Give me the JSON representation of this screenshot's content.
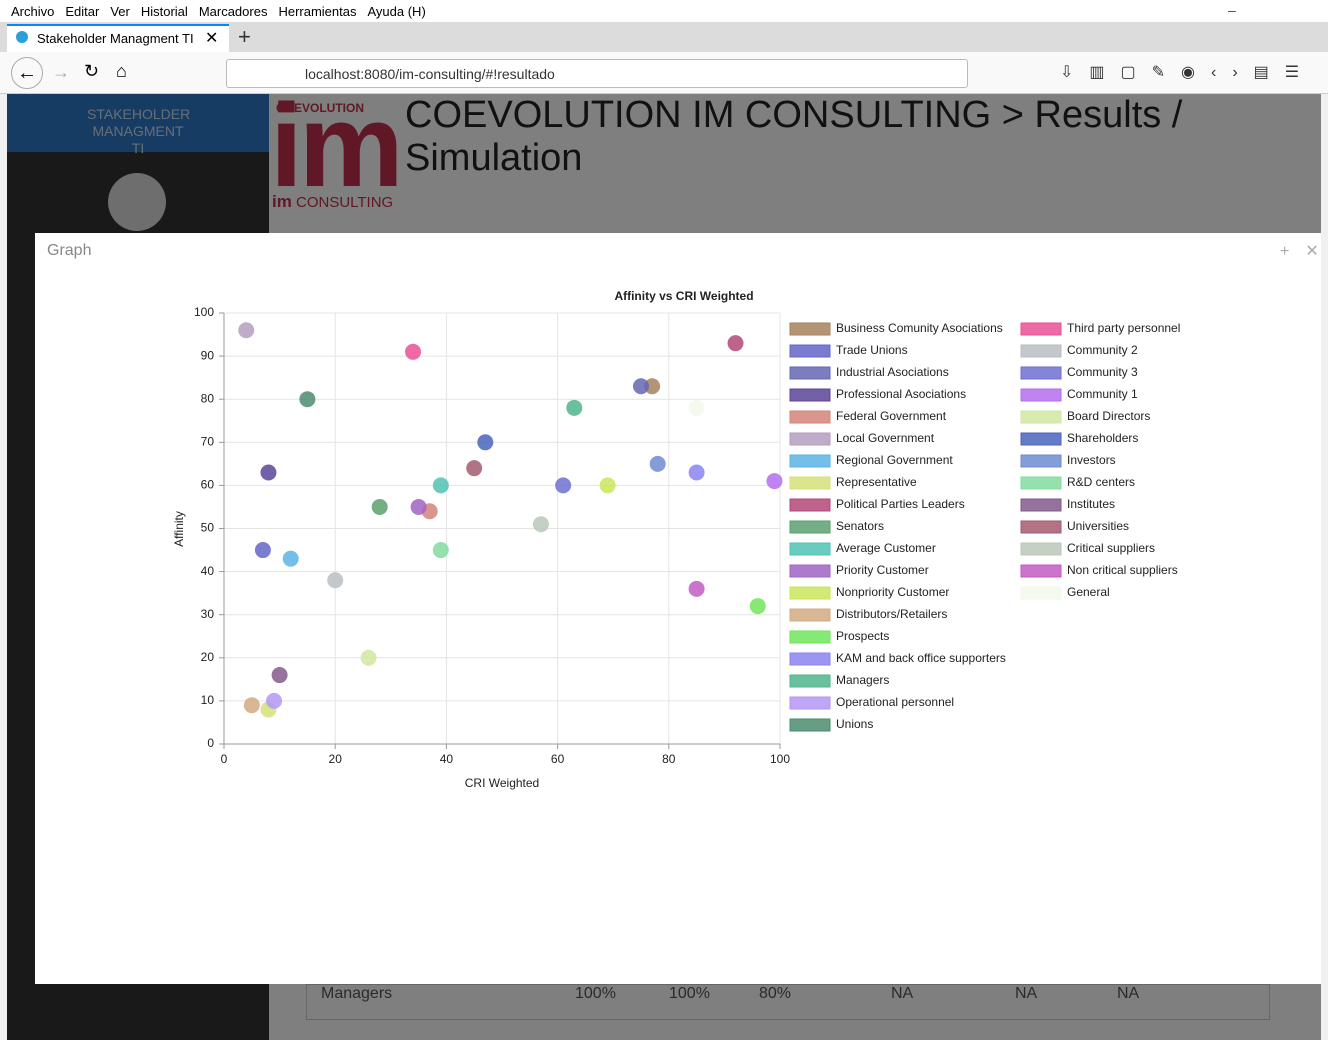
{
  "browser": {
    "menu": [
      "Archivo",
      "Editar",
      "Ver",
      "Historial",
      "Marcadores",
      "Herramientas",
      "Ayuda (H)"
    ],
    "tab_title": "Stakeholder Managment TI",
    "url": "localhost:8080/im-consulting/#!resultado"
  },
  "app": {
    "sidebar_title": "STAKEHOLDER MANAGMENT TI",
    "logo_top": "COEVOLUTION",
    "logo_main": "im",
    "logo_bottom_bold": "im",
    "logo_bottom": "CONSULTING",
    "header": "COEVOLUTION IM CONSULTING > Results / Simulation",
    "table_row": [
      "Managers",
      "100%",
      "100%",
      "80%",
      "NA",
      "NA",
      "NA"
    ]
  },
  "modal": {
    "title": "Graph"
  },
  "chart_data": {
    "type": "scatter",
    "title": "Affinity vs CRI Weighted",
    "x_label": "CRI Weighted",
    "y_label": "Affinity",
    "xlim": [
      0,
      100
    ],
    "ylim": [
      0,
      100
    ],
    "xticks": [
      0,
      20,
      40,
      60,
      80,
      100
    ],
    "yticks": [
      0,
      10,
      20,
      30,
      40,
      50,
      60,
      70,
      80,
      90,
      100
    ],
    "grid": true,
    "series": [
      {
        "name": "Business Comunity Asociations",
        "color": "#a6825e",
        "x": [
          77
        ],
        "values": [
          83
        ]
      },
      {
        "name": "Trade Unions",
        "color": "#6464c8",
        "x": [
          7
        ],
        "values": [
          45
        ]
      },
      {
        "name": "Industrial Asociations",
        "color": "#6466b4",
        "x": [
          75
        ],
        "values": [
          83
        ]
      },
      {
        "name": "Professional Asociations",
        "color": "#5a4496",
        "x": [
          8
        ],
        "values": [
          63
        ]
      },
      {
        "name": "Federal Government",
        "color": "#d4847a",
        "x": [
          37
        ],
        "values": [
          54
        ]
      },
      {
        "name": "Local Government",
        "color": "#b49ebe",
        "x": [
          4
        ],
        "values": [
          96
        ]
      },
      {
        "name": "Regional Government",
        "color": "#5ab4e6",
        "x": [
          12
        ],
        "values": [
          43
        ]
      },
      {
        "name": "Representative",
        "color": "#d4e07a",
        "x": [
          8
        ],
        "values": [
          8
        ]
      },
      {
        "name": "Political Parties Leaders",
        "color": "#b44678",
        "x": [
          92
        ],
        "values": [
          93
        ]
      },
      {
        "name": "Senators",
        "color": "#5aa06e",
        "x": [
          28
        ],
        "values": [
          55
        ]
      },
      {
        "name": "Average Customer",
        "color": "#50c3b4",
        "x": [
          39
        ],
        "values": [
          60
        ]
      },
      {
        "name": "Priority Customer",
        "color": "#a064c3",
        "x": [
          35
        ],
        "values": [
          55
        ]
      },
      {
        "name": "Nonpriority Customer",
        "color": "#c8e65a",
        "x": [
          69
        ],
        "values": [
          60
        ]
      },
      {
        "name": "Distributors/Retailers",
        "color": "#d2aa82",
        "x": [
          5
        ],
        "values": [
          9
        ]
      },
      {
        "name": "Prospects",
        "color": "#6ee65a",
        "x": [
          96
        ],
        "values": [
          32
        ]
      },
      {
        "name": "KAM and back office supporters",
        "color": "#8c82f0",
        "x": [
          85
        ],
        "values": [
          63
        ]
      },
      {
        "name": "Managers",
        "color": "#50b48c",
        "x": [
          63
        ],
        "values": [
          78
        ]
      },
      {
        "name": "Operational personnel",
        "color": "#b496f5",
        "x": [
          9
        ],
        "values": [
          10
        ]
      },
      {
        "name": "Unions",
        "color": "#4b8c6e",
        "x": [
          15
        ],
        "values": [
          80
        ]
      },
      {
        "name": "Third party personnel",
        "color": "#eb5096",
        "x": [
          34
        ],
        "values": [
          91
        ]
      },
      {
        "name": "Community 2",
        "color": "#b9bec3",
        "x": [
          20
        ],
        "values": [
          38
        ]
      },
      {
        "name": "Community 3",
        "color": "#6e6ed2",
        "x": [
          61
        ],
        "values": [
          60
        ]
      },
      {
        "name": "Community 1",
        "color": "#b46ef0",
        "x": [
          99
        ],
        "values": [
          61
        ]
      },
      {
        "name": "Board Directors",
        "color": "#d2e6a0",
        "x": [
          26
        ],
        "values": [
          20
        ]
      },
      {
        "name": "Shareholders",
        "color": "#4b64be",
        "x": [
          47
        ],
        "values": [
          70
        ]
      },
      {
        "name": "Investors",
        "color": "#6e8cd2",
        "x": [
          78
        ],
        "values": [
          65
        ]
      },
      {
        "name": "R&D centers",
        "color": "#82dca0",
        "x": [
          39
        ],
        "values": [
          45
        ]
      },
      {
        "name": "Institutes",
        "color": "#825a8c",
        "x": [
          10
        ],
        "values": [
          16
        ]
      },
      {
        "name": "Universities",
        "color": "#a55a6e",
        "x": [
          45
        ],
        "values": [
          64
        ]
      },
      {
        "name": "Critical suppliers",
        "color": "#b9c8b9",
        "x": [
          57
        ],
        "values": [
          51
        ]
      },
      {
        "name": "Non critical suppliers",
        "color": "#c35ac3",
        "x": [
          85
        ],
        "values": [
          36
        ]
      },
      {
        "name": "General",
        "color": "#f0faeb",
        "x": [
          85
        ],
        "values": [
          78
        ]
      }
    ]
  }
}
